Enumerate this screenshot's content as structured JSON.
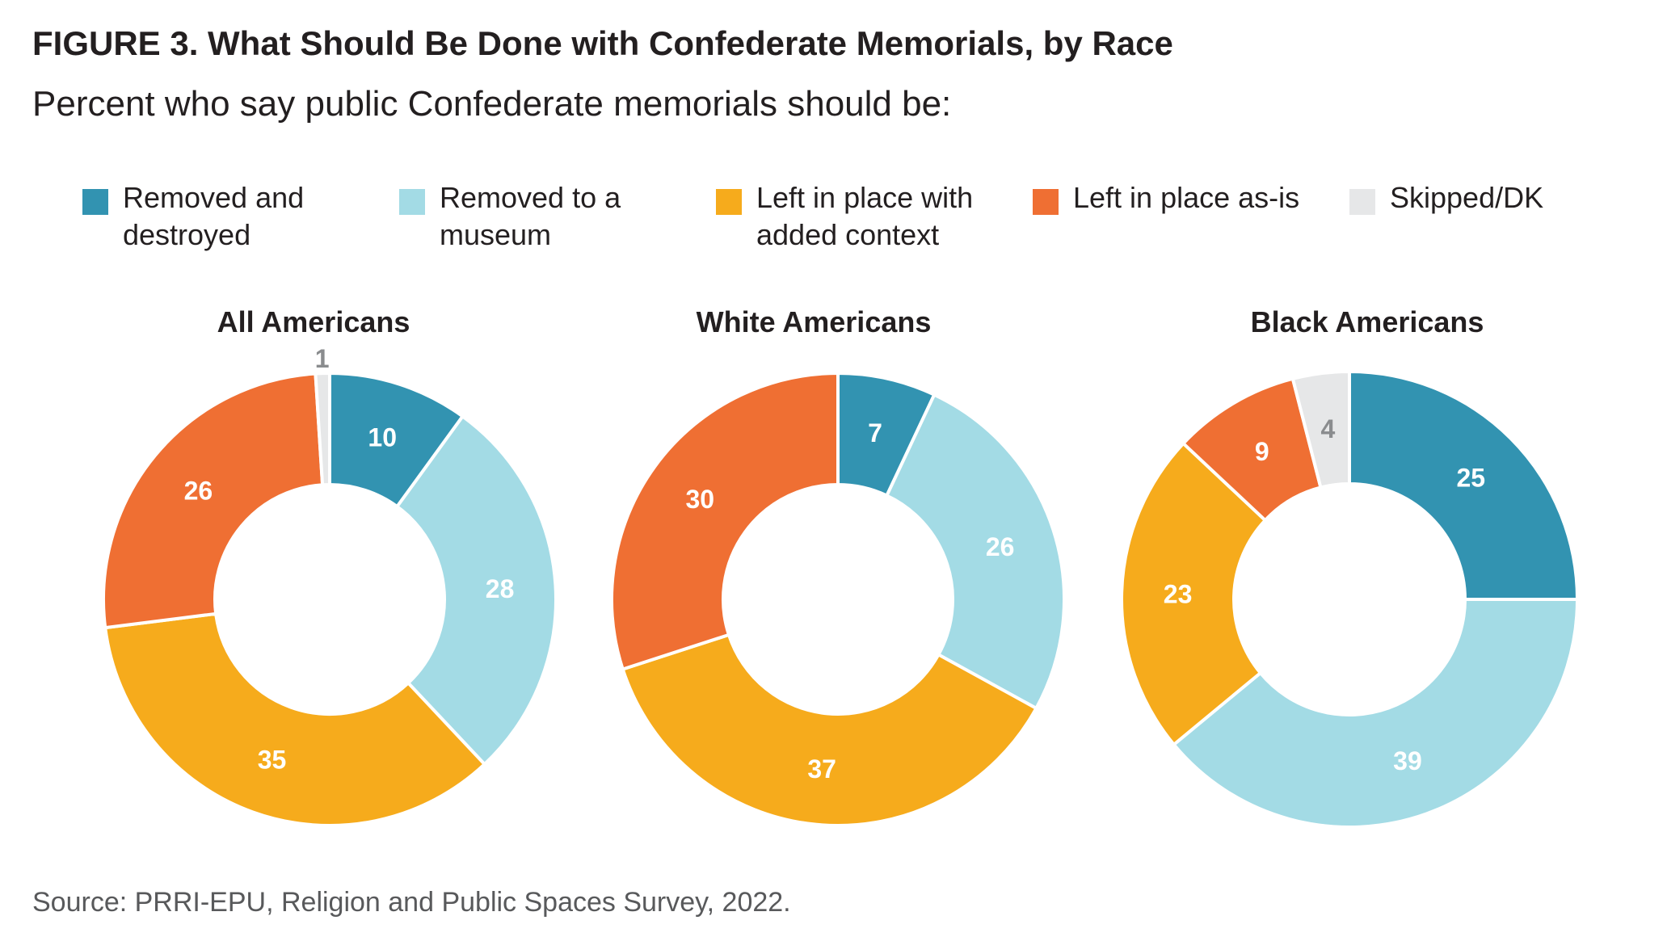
{
  "header": {
    "title": "FIGURE 3. What Should Be Done with Confederate Memorials, by Race",
    "subtitle": "Percent who say public Confederate memorials should be:"
  },
  "legend": [
    {
      "label": "Removed and destroyed",
      "color": "#3293b1"
    },
    {
      "label": "Removed to a museum",
      "color": "#a3dbe5"
    },
    {
      "label": "Left in place with added context",
      "color": "#f6ab1c"
    },
    {
      "label": "Left in place as-is",
      "color": "#ef6f33"
    },
    {
      "label": "Skipped/DK",
      "color": "#e6e7e8"
    }
  ],
  "chart_data": [
    {
      "type": "pie",
      "title": "All Americans",
      "categories": [
        "Removed and destroyed",
        "Removed to a museum",
        "Left in place with added context",
        "Left in place as-is",
        "Skipped/DK"
      ],
      "values": [
        10,
        28,
        35,
        26,
        1
      ],
      "labels": [
        "10",
        "28",
        "35",
        "26",
        "1"
      ]
    },
    {
      "type": "pie",
      "title": "White Americans",
      "categories": [
        "Removed and destroyed",
        "Removed to a museum",
        "Left in place with added context",
        "Left in place as-is"
      ],
      "values": [
        7,
        26,
        37,
        30
      ],
      "labels": [
        "7",
        "26",
        "37",
        "30"
      ]
    },
    {
      "type": "pie",
      "title": "Black Americans",
      "categories": [
        "Removed and destroyed",
        "Removed to a museum",
        "Left in place with added context",
        "Left in place as-is",
        "Skipped/DK"
      ],
      "values": [
        25,
        39,
        23,
        9,
        4
      ],
      "labels": [
        "25",
        "39",
        "23",
        "9",
        "4"
      ]
    }
  ],
  "footer": {
    "source": "Source: PRRI-EPU, Religion and Public Spaces Survey, 2022."
  }
}
